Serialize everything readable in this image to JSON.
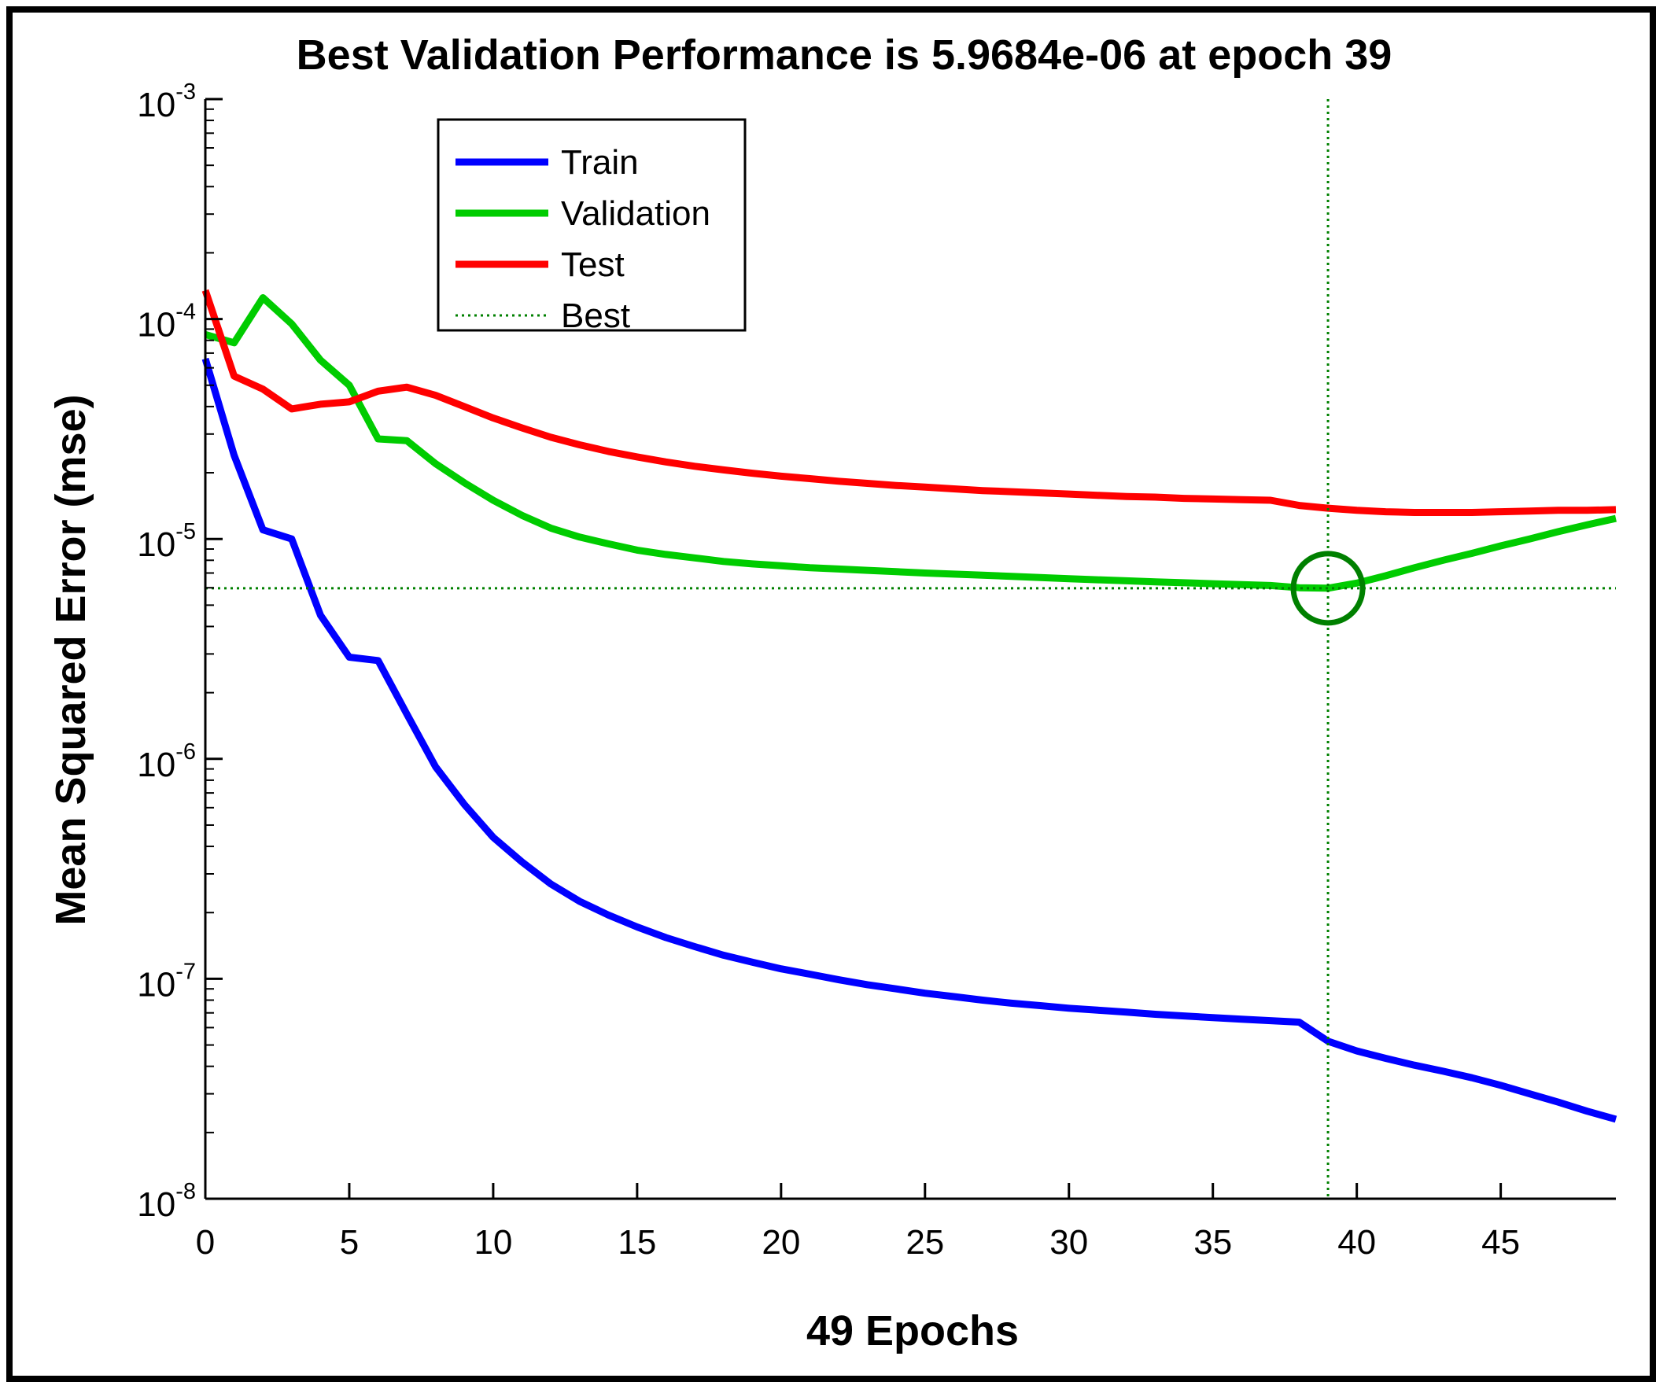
{
  "chart_data": {
    "type": "line",
    "title": "Best Validation Performance is 5.9684e-06 at epoch 39",
    "xlabel": "49 Epochs",
    "ylabel": "Mean Squared Error  (mse)",
    "xlim": [
      0,
      49
    ],
    "ylim": [
      1e-08,
      0.001
    ],
    "yscale": "log",
    "x_ticks": [
      0,
      5,
      10,
      15,
      20,
      25,
      30,
      35,
      40,
      45
    ],
    "y_ticks": [
      {
        "value": 0.001,
        "base": "10",
        "exp": "-3"
      },
      {
        "value": 0.0001,
        "base": "10",
        "exp": "-4"
      },
      {
        "value": 1e-05,
        "base": "10",
        "exp": "-5"
      },
      {
        "value": 1e-06,
        "base": "10",
        "exp": "-6"
      },
      {
        "value": 1e-07,
        "base": "10",
        "exp": "-7"
      },
      {
        "value": 1e-08,
        "base": "10",
        "exp": "-8"
      }
    ],
    "legend_position": "top-left",
    "series": [
      {
        "name": "Train",
        "color": "#0000ff",
        "x": [
          0,
          1,
          2,
          3,
          4,
          5,
          6,
          7,
          8,
          9,
          10,
          11,
          12,
          13,
          14,
          15,
          16,
          17,
          18,
          19,
          20,
          21,
          22,
          23,
          24,
          25,
          26,
          27,
          28,
          29,
          30,
          31,
          32,
          33,
          34,
          35,
          36,
          37,
          38,
          39,
          40,
          41,
          42,
          43,
          44,
          45,
          46,
          47,
          48,
          49
        ],
        "values": [
          6.6e-05,
          2.4e-05,
          1.1e-05,
          1e-05,
          4.5e-06,
          2.9e-06,
          2.8e-06,
          1.6e-06,
          9.2e-07,
          6.2e-07,
          4.4e-07,
          3.4e-07,
          2.7e-07,
          2.25e-07,
          1.95e-07,
          1.72e-07,
          1.54e-07,
          1.4e-07,
          1.28e-07,
          1.19e-07,
          1.11e-07,
          1.05e-07,
          9.9e-08,
          9.4e-08,
          9e-08,
          8.6e-08,
          8.3e-08,
          8e-08,
          7.75e-08,
          7.55e-08,
          7.35e-08,
          7.2e-08,
          7.05e-08,
          6.9e-08,
          6.78e-08,
          6.66e-08,
          6.55e-08,
          6.45e-08,
          6.35e-08,
          5.2e-08,
          4.7e-08,
          4.35e-08,
          4.05e-08,
          3.8e-08,
          3.55e-08,
          3.28e-08,
          3e-08,
          2.75e-08,
          2.5e-08,
          2.3e-08
        ]
      },
      {
        "name": "Validation",
        "color": "#00cc00",
        "x": [
          0,
          1,
          2,
          3,
          4,
          5,
          6,
          7,
          8,
          9,
          10,
          11,
          12,
          13,
          14,
          15,
          16,
          17,
          18,
          19,
          20,
          21,
          22,
          23,
          24,
          25,
          26,
          27,
          28,
          29,
          30,
          31,
          32,
          33,
          34,
          35,
          36,
          37,
          38,
          39,
          40,
          41,
          42,
          43,
          44,
          45,
          46,
          47,
          48,
          49
        ],
        "values": [
          8.5e-05,
          7.8e-05,
          0.000125,
          9.5e-05,
          6.5e-05,
          5e-05,
          2.85e-05,
          2.8e-05,
          2.2e-05,
          1.8e-05,
          1.5e-05,
          1.28e-05,
          1.12e-05,
          1.02e-05,
          9.5e-06,
          8.9e-06,
          8.5e-06,
          8.2e-06,
          7.9e-06,
          7.7e-06,
          7.55e-06,
          7.4e-06,
          7.3e-06,
          7.2e-06,
          7.1e-06,
          7e-06,
          6.92e-06,
          6.84e-06,
          6.76e-06,
          6.68e-06,
          6.6e-06,
          6.52e-06,
          6.45e-06,
          6.38e-06,
          6.32e-06,
          6.26e-06,
          6.2e-06,
          6.14e-06,
          6e-06,
          5.97e-06,
          6.3e-06,
          6.8e-06,
          7.4e-06,
          8e-06,
          8.6e-06,
          9.3e-06,
          1e-05,
          1.08e-05,
          1.16e-05,
          1.24e-05
        ]
      },
      {
        "name": "Test",
        "color": "#ff0000",
        "x": [
          0,
          1,
          2,
          3,
          4,
          5,
          6,
          7,
          8,
          9,
          10,
          11,
          12,
          13,
          14,
          15,
          16,
          17,
          18,
          19,
          20,
          21,
          22,
          23,
          24,
          25,
          26,
          27,
          28,
          29,
          30,
          31,
          32,
          33,
          34,
          35,
          36,
          37,
          38,
          39,
          40,
          41,
          42,
          43,
          44,
          45,
          46,
          47,
          48,
          49
        ],
        "values": [
          0.000135,
          5.5e-05,
          4.8e-05,
          3.9e-05,
          4.1e-05,
          4.2e-05,
          4.7e-05,
          4.9e-05,
          4.5e-05,
          4e-05,
          3.55e-05,
          3.2e-05,
          2.9e-05,
          2.68e-05,
          2.5e-05,
          2.36e-05,
          2.24e-05,
          2.14e-05,
          2.06e-05,
          1.99e-05,
          1.93e-05,
          1.88e-05,
          1.83e-05,
          1.79e-05,
          1.75e-05,
          1.72e-05,
          1.69e-05,
          1.66e-05,
          1.64e-05,
          1.62e-05,
          1.6e-05,
          1.58e-05,
          1.56e-05,
          1.55e-05,
          1.53e-05,
          1.52e-05,
          1.51e-05,
          1.5e-05,
          1.42e-05,
          1.38e-05,
          1.35e-05,
          1.33e-05,
          1.32e-05,
          1.32e-05,
          1.32e-05,
          1.33e-05,
          1.34e-05,
          1.35e-05,
          1.35e-05,
          1.36e-05
        ]
      }
    ],
    "best": {
      "name": "Best",
      "color": "#008000",
      "epoch": 39,
      "value": 5.9684e-06
    }
  }
}
